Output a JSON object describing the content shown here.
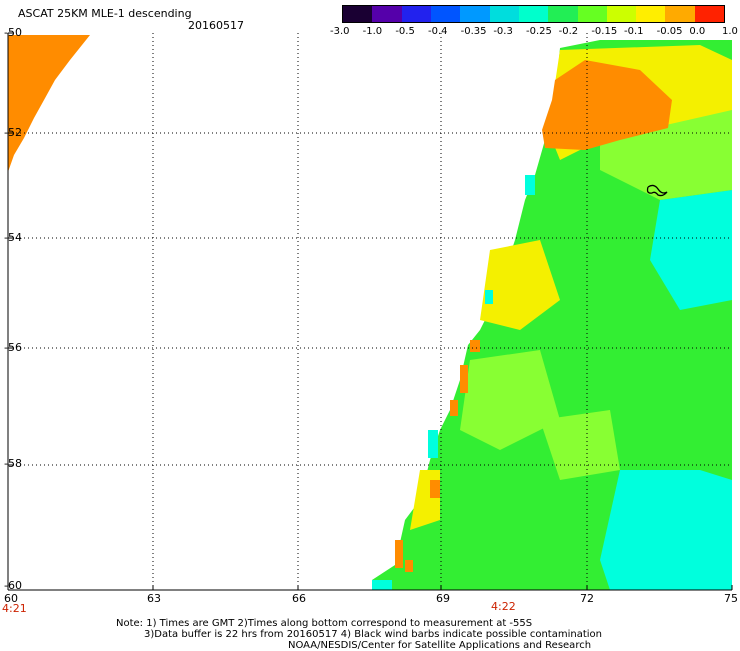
{
  "header": {
    "product": "ASCAT 25KM MLE-1 descending",
    "date": "20160517"
  },
  "colorbar": {
    "labels": [
      "-3.0",
      "-1.0",
      "-0.5",
      "-0.4",
      "-0.35",
      "-0.3",
      "-0.25",
      "-0.2",
      "-0.15",
      "-0.1",
      "-0.05",
      "0.0",
      "1.0"
    ],
    "colors": [
      "#1a0033",
      "#5500aa",
      "#2222ee",
      "#0055ff",
      "#0099ff",
      "#00dddd",
      "#00ffcc",
      "#22ee55",
      "#66ff22",
      "#ccff00",
      "#ffee00",
      "#ffaa00",
      "#ff2200"
    ]
  },
  "chart_data": {
    "type": "map",
    "x_ticks": [
      "60",
      "63",
      "66",
      "69",
      "72",
      "75"
    ],
    "y_ticks": [
      "-50",
      "-52",
      "-54",
      "-56",
      "-58",
      "-60"
    ],
    "x_range": [
      60,
      75
    ],
    "y_range": [
      -60,
      -50
    ],
    "times": [
      {
        "lon": 60,
        "label": "4:21"
      },
      {
        "lon": 70.2,
        "label": "4:22"
      }
    ],
    "field_colors": {
      "orange": "#ff8c00",
      "yellow": "#f4f000",
      "green": "#33ee33",
      "lightgreen": "#88ff33",
      "cyan": "#00ffdd"
    }
  },
  "notes": {
    "line1": "Note: 1) Times are GMT 2)Times along bottom correspond to measurement at -55S",
    "line2": "3)Data buffer is 22 hrs from 20160517 4) Black wind barbs indicate possible contamination",
    "line3": "NOAA/NESDIS/Center for Satellite Applications and Research"
  }
}
